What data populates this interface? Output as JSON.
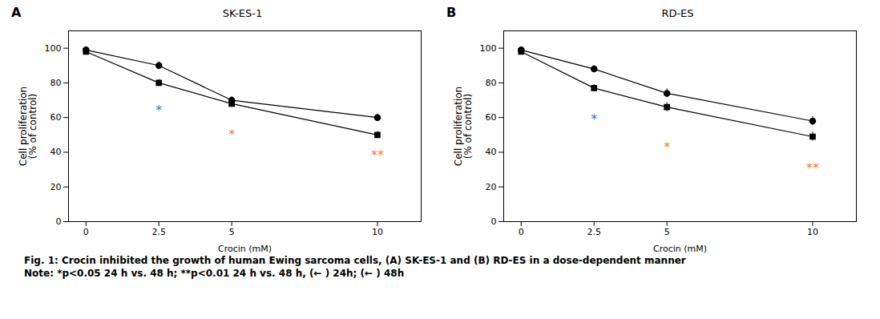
{
  "chart_data": [
    {
      "type": "line",
      "title": "SK-ES-1",
      "panel_label": "A",
      "xlabel": "Crocin (mM)",
      "ylabel": "Cell proliferation\n(% of control)",
      "x": [
        0,
        2.5,
        5,
        10
      ],
      "xlim": [
        -0.6,
        11.5
      ],
      "xticks": [
        0,
        2.5,
        5,
        10
      ],
      "ylim": [
        0,
        110
      ],
      "yticks": [
        0,
        20,
        40,
        60,
        80,
        100
      ],
      "series": [
        {
          "values": [
            99,
            90,
            70,
            60
          ],
          "errors": [
            1.5,
            2.0,
            2.0,
            2.0
          ],
          "color": "#000000",
          "marker": "circle"
        },
        {
          "values": [
            98,
            80,
            68,
            50
          ],
          "errors": [
            1.5,
            2.0,
            2.0,
            2.0
          ],
          "color": "#000000",
          "marker": "square"
        }
      ],
      "annotations": [
        {
          "x": 2.5,
          "y": 64,
          "text": "*",
          "color": "#4472c4"
        },
        {
          "x": 5,
          "y": 50,
          "text": "*",
          "color": "#ed7d31"
        },
        {
          "x": 10,
          "y": 38,
          "text": "**",
          "color": "#ed7d31"
        }
      ]
    },
    {
      "type": "line",
      "title": "RD-ES",
      "panel_label": "B",
      "xlabel": "Crocin (mM)",
      "ylabel": "Cell proliferation\n(% of control)",
      "x": [
        0,
        2.5,
        5,
        10
      ],
      "xlim": [
        -0.6,
        11.5
      ],
      "xticks": [
        0,
        2.5,
        5,
        10
      ],
      "ylim": [
        0,
        110
      ],
      "yticks": [
        0,
        20,
        40,
        60,
        80,
        100
      ],
      "series": [
        {
          "values": [
            99,
            88,
            74,
            58
          ],
          "errors": [
            1.5,
            2.0,
            2.5,
            2.5
          ],
          "color": "#000000",
          "marker": "circle"
        },
        {
          "values": [
            98,
            77,
            66,
            49
          ],
          "errors": [
            1.5,
            2.0,
            2.5,
            2.5
          ],
          "color": "#000000",
          "marker": "square"
        }
      ],
      "annotations": [
        {
          "x": 2.5,
          "y": 59,
          "text": "*",
          "color": "#4472c4"
        },
        {
          "x": 5,
          "y": 43,
          "text": "*",
          "color": "#ed7d31"
        },
        {
          "x": 10,
          "y": 31,
          "text": "**",
          "color": "#ed7d31"
        }
      ]
    }
  ],
  "caption": [
    "Fig. 1: Crocin inhibited the growth of human Ewing sarcoma cells, (A) SK-ES-1 and (B) RD-ES in a dose-dependent manner",
    "Note: *p<0.05 24 h vs. 48 h; **p<0.01 24 h vs. 48 h, (←  ) 24h; (←  ) 48h"
  ]
}
